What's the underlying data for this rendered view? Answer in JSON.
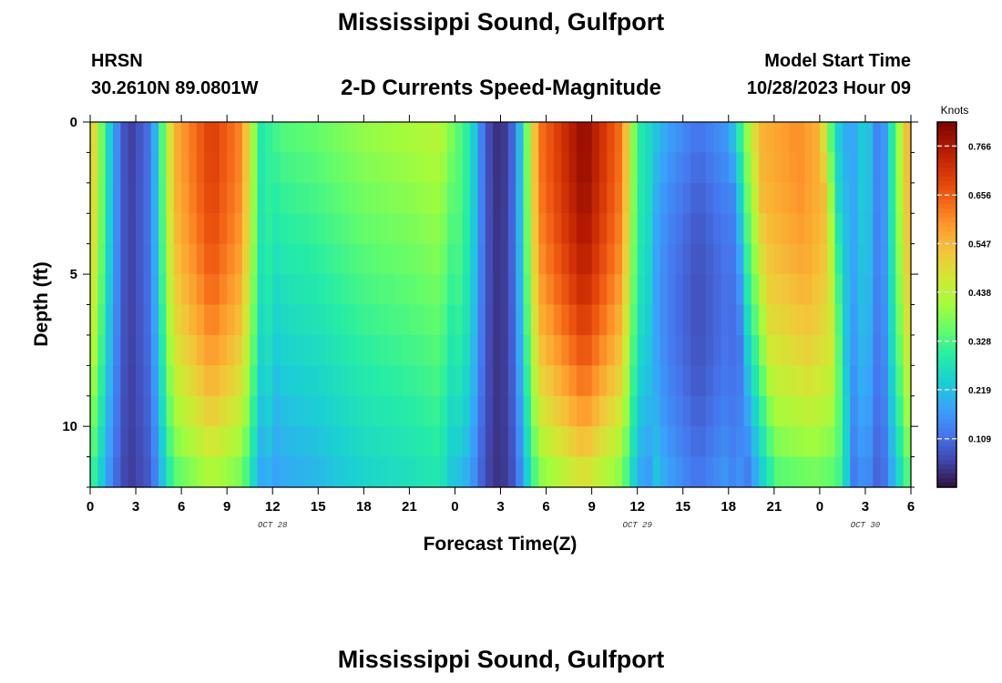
{
  "header": {
    "title": "Mississippi Sound, Gulfport",
    "station": "HRSN",
    "coords": "30.2610N  89.0801W",
    "subtitle": "2-D Currents Speed-Magnitude",
    "model_start_label": "Model Start Time",
    "model_start_value": "10/28/2023 Hour 09"
  },
  "footer": {
    "title": "Mississippi Sound, Gulfport"
  },
  "chart_data": {
    "type": "heatmap",
    "title": "Mississippi Sound, Gulfport",
    "subtitle": "2-D Currents Speed-Magnitude",
    "xlabel": "Forecast Time(Z)",
    "ylabel": "Depth (ft)",
    "x_range_hours": [
      0,
      54
    ],
    "y_range_ft": [
      0,
      12
    ],
    "y_inverted": true,
    "x_tick_labels": [
      "0",
      "3",
      "6",
      "9",
      "12",
      "15",
      "18",
      "21",
      "0",
      "3",
      "6",
      "9",
      "12",
      "15",
      "18",
      "21",
      "0",
      "3",
      "6"
    ],
    "y_ticks": [
      0,
      5,
      10
    ],
    "date_labels": [
      {
        "label": "OCT 28",
        "hour": 12
      },
      {
        "label": "OCT 29",
        "hour": 36
      },
      {
        "label": "OCT 30",
        "hour": 51
      }
    ],
    "colorbar": {
      "label": "Knots",
      "min": 0,
      "max": 0.82,
      "ticks": [
        0.766,
        0.656,
        0.547,
        0.438,
        0.328,
        0.219,
        0.109
      ],
      "tick_labels": [
        "0.766",
        "0.656",
        "0.547",
        "0.438",
        "0.328",
        "0.219",
        "0.109"
      ],
      "colormap": [
        "#30123b",
        "#4145ab",
        "#4675ed",
        "#39a2fc",
        "#1bcfd4",
        "#24eca6",
        "#61fc6c",
        "#a4fc3b",
        "#d1e834",
        "#f3c63a",
        "#fe9b2d",
        "#f36315",
        "#d93806",
        "#b11901",
        "#7a0403"
      ]
    },
    "surface_speed_profile_knots": [
      {
        "hour": 0,
        "speed": 0.55
      },
      {
        "hour": 1.5,
        "speed": 0.18
      },
      {
        "hour": 2.5,
        "speed": 0.04
      },
      {
        "hour": 4,
        "speed": 0.12
      },
      {
        "hour": 5.5,
        "speed": 0.55
      },
      {
        "hour": 8,
        "speed": 0.7
      },
      {
        "hour": 10,
        "speed": 0.6
      },
      {
        "hour": 11.2,
        "speed": 0.28
      },
      {
        "hour": 12.5,
        "speed": 0.34
      },
      {
        "hour": 15,
        "speed": 0.36
      },
      {
        "hour": 18,
        "speed": 0.4
      },
      {
        "hour": 21,
        "speed": 0.42
      },
      {
        "hour": 23,
        "speed": 0.44
      },
      {
        "hour": 25,
        "speed": 0.28
      },
      {
        "hour": 26,
        "speed": 0.08
      },
      {
        "hour": 27,
        "speed": 0.02
      },
      {
        "hour": 28,
        "speed": 0.12
      },
      {
        "hour": 29.5,
        "speed": 0.62
      },
      {
        "hour": 32.5,
        "speed": 0.8
      },
      {
        "hour": 35,
        "speed": 0.62
      },
      {
        "hour": 36,
        "speed": 0.3
      },
      {
        "hour": 38,
        "speed": 0.18
      },
      {
        "hour": 40,
        "speed": 0.12
      },
      {
        "hour": 42,
        "speed": 0.17
      },
      {
        "hour": 44,
        "speed": 0.55
      },
      {
        "hour": 46.5,
        "speed": 0.6
      },
      {
        "hour": 48,
        "speed": 0.55
      },
      {
        "hour": 49,
        "speed": 0.25
      },
      {
        "hour": 50,
        "speed": 0.16
      },
      {
        "hour": 51,
        "speed": 0.25
      },
      {
        "hour": 52,
        "speed": 0.1
      },
      {
        "hour": 53,
        "speed": 0.35
      },
      {
        "hour": 54,
        "speed": 0.6
      }
    ]
  }
}
